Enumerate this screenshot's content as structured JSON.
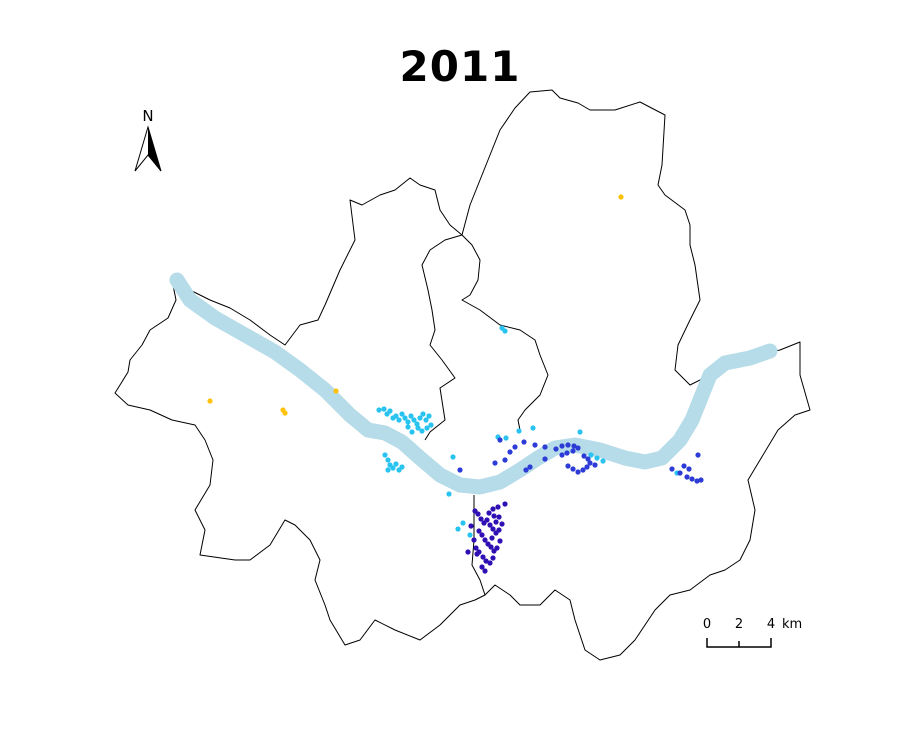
{
  "title": "2011",
  "north_label": "N",
  "scale_bar": {
    "labels": [
      "0",
      "2",
      "4"
    ],
    "unit": "km"
  },
  "colors": {
    "river": "#b5dce8",
    "boundary": "#000000",
    "points": {
      "yellow": "#ffc20e",
      "cyan": "#29c3f0",
      "blue": "#2d3cd6",
      "indigo": "#3010b4"
    }
  },
  "points_legend_note": "",
  "map_points": {
    "yellow": [
      [
        621,
        197
      ],
      [
        210,
        401
      ],
      [
        283,
        410
      ],
      [
        285,
        413
      ],
      [
        336,
        391
      ]
    ],
    "cyan": [
      [
        502,
        328
      ],
      [
        505,
        331
      ],
      [
        379,
        410
      ],
      [
        384,
        409
      ],
      [
        387,
        414
      ],
      [
        390,
        411
      ],
      [
        393,
        418
      ],
      [
        396,
        416
      ],
      [
        399,
        420
      ],
      [
        402,
        414
      ],
      [
        405,
        418
      ],
      [
        408,
        422
      ],
      [
        411,
        416
      ],
      [
        414,
        420
      ],
      [
        417,
        424
      ],
      [
        420,
        418
      ],
      [
        423,
        414
      ],
      [
        426,
        420
      ],
      [
        429,
        416
      ],
      [
        431,
        425
      ],
      [
        427,
        428
      ],
      [
        422,
        431
      ],
      [
        418,
        428
      ],
      [
        412,
        432
      ],
      [
        408,
        427
      ],
      [
        385,
        455
      ],
      [
        388,
        460
      ],
      [
        390,
        465
      ],
      [
        393,
        468
      ],
      [
        396,
        464
      ],
      [
        399,
        470
      ],
      [
        402,
        467
      ],
      [
        388,
        470
      ],
      [
        453,
        457
      ],
      [
        449,
        494
      ],
      [
        498,
        437
      ],
      [
        506,
        438
      ],
      [
        519,
        431
      ],
      [
        533,
        428
      ],
      [
        580,
        432
      ],
      [
        597,
        458
      ],
      [
        591,
        455
      ],
      [
        603,
        461
      ],
      [
        458,
        529
      ],
      [
        463,
        523
      ],
      [
        470,
        535
      ],
      [
        677,
        473
      ]
    ],
    "blue": [
      [
        460,
        470
      ],
      [
        500,
        440
      ],
      [
        495,
        463
      ],
      [
        505,
        460
      ],
      [
        510,
        452
      ],
      [
        515,
        447
      ],
      [
        524,
        442
      ],
      [
        535,
        445
      ],
      [
        545,
        447
      ],
      [
        556,
        449
      ],
      [
        562,
        446
      ],
      [
        568,
        445
      ],
      [
        574,
        446
      ],
      [
        562,
        455
      ],
      [
        567,
        453
      ],
      [
        573,
        451
      ],
      [
        578,
        448
      ],
      [
        584,
        456
      ],
      [
        588,
        459
      ],
      [
        568,
        466
      ],
      [
        573,
        469
      ],
      [
        578,
        472
      ],
      [
        583,
        470
      ],
      [
        587,
        467
      ],
      [
        590,
        463
      ],
      [
        595,
        465
      ],
      [
        526,
        470
      ],
      [
        530,
        467
      ],
      [
        545,
        459
      ],
      [
        672,
        469
      ],
      [
        680,
        473
      ],
      [
        687,
        477
      ],
      [
        692,
        479
      ],
      [
        697,
        481
      ],
      [
        701,
        480
      ],
      [
        698,
        455
      ],
      [
        684,
        466
      ],
      [
        689,
        469
      ]
    ],
    "indigo": [
      [
        475,
        511
      ],
      [
        478,
        514
      ],
      [
        481,
        519
      ],
      [
        484,
        523
      ],
      [
        487,
        520
      ],
      [
        490,
        525
      ],
      [
        493,
        529
      ],
      [
        496,
        522
      ],
      [
        499,
        517
      ],
      [
        502,
        524
      ],
      [
        479,
        531
      ],
      [
        482,
        535
      ],
      [
        485,
        540
      ],
      [
        488,
        544
      ],
      [
        491,
        547
      ],
      [
        494,
        551
      ],
      [
        497,
        548
      ],
      [
        500,
        541
      ],
      [
        476,
        548
      ],
      [
        479,
        552
      ],
      [
        483,
        557
      ],
      [
        486,
        561
      ],
      [
        490,
        563
      ],
      [
        493,
        558
      ],
      [
        474,
        540
      ],
      [
        471,
        526
      ],
      [
        496,
        533
      ],
      [
        492,
        538
      ],
      [
        489,
        513
      ],
      [
        493,
        509
      ],
      [
        505,
        504
      ],
      [
        477,
        554
      ],
      [
        468,
        552
      ],
      [
        482,
        567
      ],
      [
        485,
        571
      ],
      [
        498,
        507
      ],
      [
        494,
        516
      ],
      [
        499,
        530
      ]
    ]
  }
}
